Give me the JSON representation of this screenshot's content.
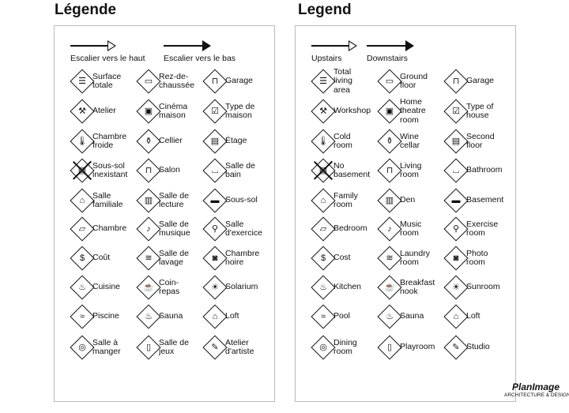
{
  "fr": {
    "title": "Légende",
    "stairs_up": "Escalier vers le haut",
    "stairs_down": "Escalier vers le bas",
    "items": [
      [
        "Surface\ntotale",
        "Rez-de-\nchaussée",
        "Garage"
      ],
      [
        "Atelier",
        "Cinéma\nmaison",
        "Type de\nmaison"
      ],
      [
        "Chambre\nfroide",
        "Cellier",
        "Étage"
      ],
      [
        "Sous-sol\ninexistant",
        "Salon",
        "Salle de\nbain"
      ],
      [
        "Salle\nfamiliale",
        "Salle de\nlecture",
        "Sous-sol"
      ],
      [
        "Chambre",
        "Salle de\nmusique",
        "Salle\nd'exercice"
      ],
      [
        "Coût",
        "Salle de\nlavage",
        "Chambre\nnoire"
      ],
      [
        "Cuisine",
        "Coin-\nrepas",
        "Solarium"
      ],
      [
        "Piscine",
        "Sauna",
        "Loft"
      ],
      [
        "Salle à\nmanger",
        "Salle de\njeux",
        "Atelier\nd'artiste"
      ]
    ]
  },
  "en": {
    "title": "Legend",
    "stairs_up": "Upstairs",
    "stairs_down": "Downstairs",
    "items": [
      [
        "Total\nliving\narea",
        "Ground\nfloor",
        "Garage"
      ],
      [
        "Workshop",
        "Home\ntheatre\nroom",
        "Type of\nhouse"
      ],
      [
        "Cold\nroom",
        "Wine\ncellar",
        "Second\nfloor"
      ],
      [
        "No\nbasement",
        "Living\nroom",
        "Bathroom"
      ],
      [
        "Family\nroom",
        "Den",
        "Basement"
      ],
      [
        "Bedroom",
        "Music\nroom",
        "Exercise\nroom"
      ],
      [
        "Cost",
        "Laundry\nroom",
        "Photo\nroom"
      ],
      [
        "Kitchen",
        "Breakfast\nnook",
        "Sunroom"
      ],
      [
        "Pool",
        "Sauna",
        "Loft"
      ],
      [
        "Dining\nroom",
        "Playroom",
        "Studio"
      ]
    ]
  },
  "icons": [
    [
      "total-area-icon",
      "ground-floor-icon",
      "garage-icon"
    ],
    [
      "hammer-icon",
      "theatre-icon",
      "house-type-icon"
    ],
    [
      "thermometer-icon",
      "wine-icon",
      "second-floor-icon"
    ],
    [
      "no-basement-icon",
      "sofa-icon",
      "bathtub-icon"
    ],
    [
      "family-icon",
      "book-icon",
      "basement-icon"
    ],
    [
      "bed-icon",
      "music-note-icon",
      "dumbbell-icon"
    ],
    [
      "dollar-icon",
      "laundry-icon",
      "camera-icon"
    ],
    [
      "pot-icon",
      "coffee-icon",
      "sun-icon"
    ],
    [
      "pool-icon",
      "sauna-icon",
      "loft-icon"
    ],
    [
      "plate-icon",
      "game-icon",
      "palette-icon"
    ]
  ],
  "glyphs": [
    [
      "☰",
      "▭",
      "⊓"
    ],
    [
      "⚒",
      "▣",
      "☑"
    ],
    [
      "🌡",
      "⚱",
      "▤"
    ],
    [
      "▤",
      "⊓",
      "⌴"
    ],
    [
      "⌂",
      "▥",
      "▬"
    ],
    [
      "▱",
      "♪",
      "⚲"
    ],
    [
      "$",
      "≋",
      "◙"
    ],
    [
      "♨",
      "☕",
      "☀"
    ],
    [
      "≈",
      "♨",
      "⌂"
    ],
    [
      "◎",
      "▯",
      "✎"
    ]
  ],
  "logo": {
    "text": "PlanImage",
    "tagline": "ARCHITECTURE & DESIGN"
  }
}
